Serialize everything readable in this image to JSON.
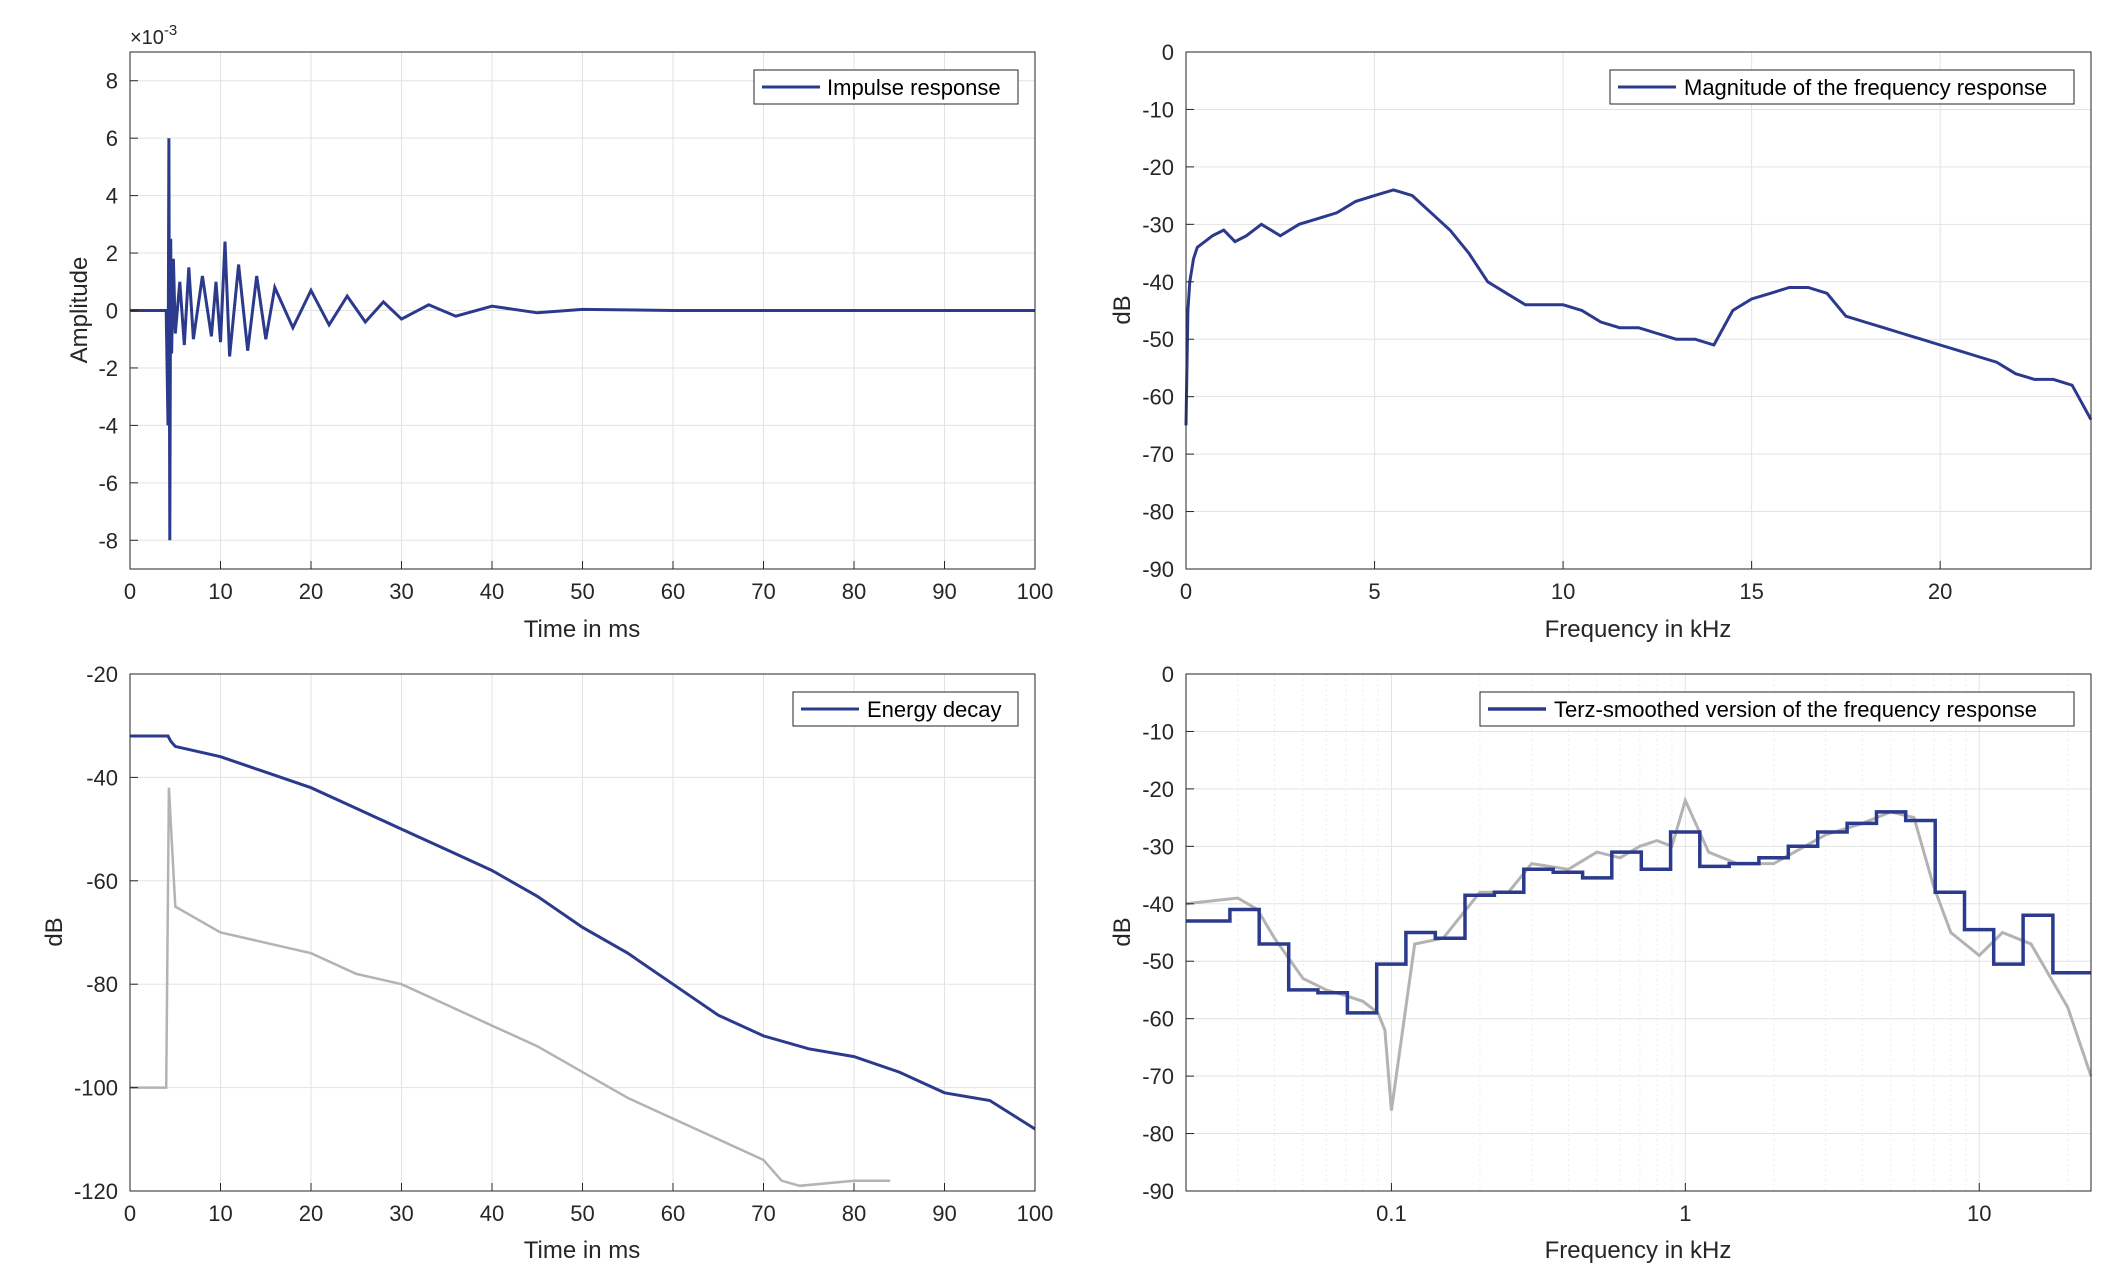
{
  "colors": {
    "series": "#2b3a8c",
    "secondary": "#b3b3b3",
    "grid": "#e3e3e3",
    "minor_grid": "#ededed",
    "axis": "#262626"
  },
  "chart_data": [
    {
      "type": "line",
      "xlabel": "Time in ms",
      "ylabel": "Amplitude",
      "xlim": [
        0,
        100
      ],
      "ylim": [
        -9,
        9
      ],
      "xticks": [
        0,
        10,
        20,
        30,
        40,
        50,
        60,
        70,
        80,
        90,
        100
      ],
      "yticks": [
        -8,
        -6,
        -4,
        -2,
        0,
        2,
        4,
        6,
        8
      ],
      "exponent": "-3",
      "grid": true,
      "legend_position": "top-right",
      "series": [
        {
          "name": "Impulse response",
          "x": [
            0,
            4.0,
            4.2,
            4.3,
            4.4,
            4.5,
            4.6,
            4.8,
            5.0,
            5.5,
            6,
            6.5,
            7,
            8,
            9,
            9.5,
            10,
            10.5,
            11,
            12,
            13,
            14,
            15,
            16,
            18,
            20,
            22,
            24,
            26,
            28,
            30,
            33,
            36,
            40,
            45,
            50,
            60,
            80,
            100
          ],
          "values": [
            0,
            0,
            -4.0,
            6.0,
            -8.0,
            2.5,
            -1.5,
            1.8,
            -0.8,
            1.0,
            -1.2,
            1.5,
            -1.0,
            1.2,
            -0.9,
            1.0,
            -1.1,
            2.4,
            -1.6,
            1.6,
            -1.4,
            1.2,
            -1.0,
            0.8,
            -0.6,
            0.7,
            -0.5,
            0.5,
            -0.4,
            0.3,
            -0.3,
            0.2,
            -0.2,
            0.15,
            -0.08,
            0.04,
            0,
            0,
            0
          ]
        }
      ]
    },
    {
      "type": "line",
      "xlabel": "Frequency in kHz",
      "ylabel": "dB",
      "xlim": [
        0,
        24
      ],
      "ylim": [
        -90,
        0
      ],
      "xticks": [
        0,
        5,
        10,
        15,
        20
      ],
      "yticks": [
        0,
        -10,
        -20,
        -30,
        -40,
        -50,
        -60,
        -70,
        -80,
        -90
      ],
      "grid": true,
      "legend_position": "top-right",
      "series": [
        {
          "name": "Magnitude of the frequency response",
          "x": [
            0,
            0.05,
            0.1,
            0.2,
            0.3,
            0.5,
            0.7,
            1.0,
            1.3,
            1.6,
            2.0,
            2.5,
            3.0,
            3.5,
            4.0,
            4.5,
            5.0,
            5.5,
            6.0,
            6.5,
            7.0,
            7.5,
            8.0,
            8.5,
            9.0,
            9.5,
            10.0,
            10.5,
            11.0,
            11.5,
            12.0,
            12.5,
            13.0,
            13.5,
            14.0,
            14.5,
            15.0,
            15.5,
            16.0,
            16.5,
            17.0,
            17.5,
            18.0,
            18.5,
            19.0,
            19.5,
            20.0,
            20.5,
            21.0,
            21.5,
            22.0,
            22.5,
            23.0,
            23.5,
            24.0
          ],
          "values": [
            -65,
            -45,
            -40,
            -36,
            -34,
            -33,
            -32,
            -31,
            -33,
            -32,
            -30,
            -32,
            -30,
            -29,
            -28,
            -26,
            -25,
            -24,
            -25,
            -28,
            -31,
            -35,
            -40,
            -42,
            -44,
            -44,
            -44,
            -45,
            -47,
            -48,
            -48,
            -49,
            -50,
            -50,
            -51,
            -45,
            -43,
            -42,
            -41,
            -41,
            -42,
            -46,
            -47,
            -48,
            -49,
            -50,
            -51,
            -52,
            -53,
            -54,
            -56,
            -57,
            -57,
            -58,
            -64
          ]
        }
      ]
    },
    {
      "type": "line",
      "xlabel": "Time in ms",
      "ylabel": "dB",
      "xlim": [
        0,
        100
      ],
      "ylim": [
        -120,
        -20
      ],
      "xticks": [
        0,
        10,
        20,
        30,
        40,
        50,
        60,
        70,
        80,
        90,
        100
      ],
      "yticks": [
        -20,
        -40,
        -60,
        -80,
        -100,
        -120
      ],
      "grid": true,
      "legend_position": "top-right",
      "series": [
        {
          "name": "Energy decay",
          "x": [
            0,
            4.2,
            4.5,
            5,
            10,
            15,
            20,
            25,
            30,
            35,
            40,
            45,
            50,
            55,
            60,
            65,
            70,
            75,
            80,
            85,
            90,
            95,
            100
          ],
          "values": [
            -32,
            -32,
            -33,
            -34,
            -36,
            -39,
            -42,
            -46,
            -50,
            -54,
            -58,
            -63,
            -69,
            -74,
            -80,
            -86,
            -90,
            -92.5,
            -94,
            -97,
            -101,
            -102.5,
            -108
          ]
        },
        {
          "x": [
            0,
            4,
            4.3,
            5,
            10,
            15,
            20,
            25,
            30,
            35,
            40,
            45,
            50,
            55,
            60,
            65,
            70,
            72,
            74,
            80,
            84
          ],
          "values": [
            -100,
            -100,
            -42,
            -65,
            -70,
            -72,
            -74,
            -78,
            -80,
            -84,
            -88,
            -92,
            -97,
            -102,
            -106,
            -110,
            -114,
            -118,
            -119,
            -118,
            -118
          ]
        }
      ]
    },
    {
      "type": "line",
      "xlabel": "Frequency in kHz",
      "ylabel": "dB",
      "xscale": "log",
      "xlim": [
        0.02,
        24
      ],
      "ylim": [
        -90,
        0
      ],
      "xticks": [
        0.1,
        1,
        10
      ],
      "xticklabels": [
        "0.1",
        "1",
        "10"
      ],
      "yticks": [
        0,
        -10,
        -20,
        -30,
        -40,
        -50,
        -60,
        -70,
        -80,
        -90
      ],
      "grid": true,
      "legend_position": "top-right",
      "series": [
        {
          "name": "Terz-smoothed version of the frequency response",
          "step": true,
          "edges": [
            0.02,
            0.0224,
            0.0282,
            0.0355,
            0.0447,
            0.0562,
            0.0708,
            0.0891,
            0.112,
            0.141,
            0.178,
            0.224,
            0.282,
            0.355,
            0.447,
            0.562,
            0.708,
            0.891,
            1.12,
            1.41,
            1.78,
            2.24,
            2.82,
            3.55,
            4.47,
            5.62,
            7.08,
            8.91,
            11.2,
            14.1,
            17.8,
            24
          ],
          "values": [
            -43,
            -43,
            -41,
            -47,
            -55,
            -55.5,
            -59,
            -50.5,
            -45,
            -46,
            -38.5,
            -38,
            -34,
            -34.5,
            -35.5,
            -31,
            -34,
            -27.5,
            -33.5,
            -33,
            -32,
            -30,
            -27.5,
            -26,
            -24,
            -25.5,
            -38,
            -44.5,
            -50.5,
            -42,
            -52
          ]
        },
        {
          "x": [
            0.02,
            0.03,
            0.035,
            0.04,
            0.05,
            0.06,
            0.07,
            0.08,
            0.09,
            0.095,
            0.1,
            0.12,
            0.15,
            0.2,
            0.25,
            0.3,
            0.4,
            0.5,
            0.6,
            0.7,
            0.8,
            0.9,
            1.0,
            1.2,
            1.5,
            2.0,
            3.0,
            4.0,
            5.0,
            6.0,
            7.0,
            8.0,
            10.0,
            12.0,
            15.0,
            20.0,
            24.0
          ],
          "values": [
            -40,
            -39,
            -41,
            -46,
            -53,
            -55,
            -56,
            -57,
            -59,
            -62,
            -76,
            -47,
            -46,
            -38,
            -38,
            -33,
            -34,
            -31,
            -32,
            -30,
            -29,
            -30,
            -22,
            -31,
            -33,
            -33,
            -28,
            -26,
            -24,
            -25,
            -37,
            -45,
            -49,
            -45,
            -47,
            -58,
            -70
          ]
        }
      ]
    }
  ]
}
